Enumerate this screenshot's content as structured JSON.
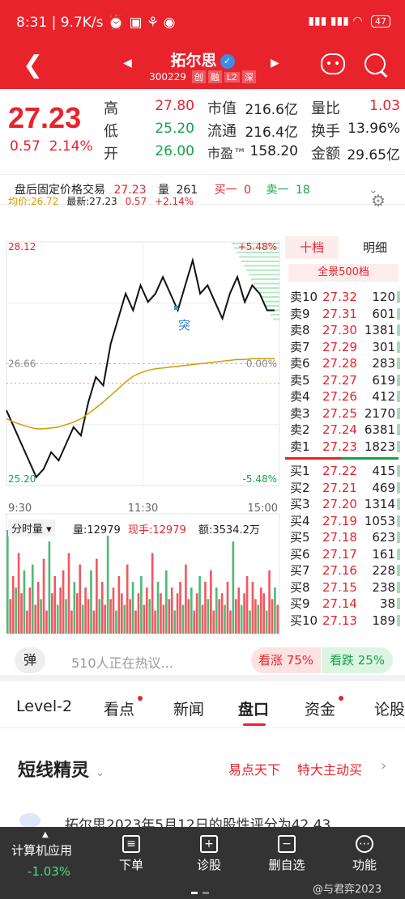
{
  "status": {
    "time": "8:31",
    "speed": "9.7K/s",
    "battery": "47",
    "icons": [
      "clock-icon",
      "app-icon",
      "app-icon",
      "weibo-icon",
      "signal-icon",
      "wifi-icon"
    ]
  },
  "header": {
    "name": "拓尔思",
    "code": "300229",
    "tags": [
      "创",
      "融",
      "L2",
      "深"
    ]
  },
  "quote": {
    "price": "27.23",
    "change": "0.57",
    "change_pct": "2.14%",
    "labels": {
      "high": "高",
      "low": "低",
      "open": "开",
      "mktcap": "市值",
      "float": "流通",
      "pe": "市盈™",
      "vol_ratio": "量比",
      "turnover": "换手",
      "amount": "金额"
    },
    "high": "27.80",
    "low": "25.20",
    "open": "26.00",
    "mktcap": "216.6亿",
    "float": "216.4亿",
    "pe": "158.20",
    "vol_ratio": "1.03",
    "turnover": "13.96%",
    "amount": "29.65亿"
  },
  "after_hours": {
    "label": "盘后固定价格交易",
    "price": "27.23",
    "vol_label": "量",
    "vol": "261",
    "sell_label": "买一",
    "sell": "0",
    "buy_label": "卖一",
    "buy": "18"
  },
  "chart_header": {
    "avg_label": "均价:26.72",
    "last_label": "最新:27.23",
    "chg": "0.57",
    "pct": "+2.14%"
  },
  "chart_data": {
    "type": "line",
    "ylim": [
      25.2,
      28.12
    ],
    "prev_close": 26.66,
    "y_ticks": [
      "28.12",
      "26.66",
      "25.20"
    ],
    "pct_ticks": [
      "+5.48%",
      "0.00%",
      "-5.48%"
    ],
    "x_ticks": [
      "9:30",
      "11:30",
      "15:00"
    ],
    "annotation": "突",
    "series": [
      {
        "values": [
          26.1,
          25.9,
          25.7,
          25.5,
          25.3,
          25.4,
          25.6,
          25.5,
          25.7,
          25.9,
          25.8,
          26.2,
          26.5,
          26.4,
          26.9,
          27.2,
          27.5,
          27.3,
          27.6,
          27.4,
          27.5,
          27.7,
          27.5,
          27.3,
          27.6,
          27.9,
          27.5,
          27.6,
          27.4,
          27.2,
          27.5,
          27.7,
          27.4,
          27.6,
          27.5,
          27.3,
          27.3
        ]
      },
      {
        "values": [
          26.0,
          25.96,
          25.93,
          25.9,
          25.88,
          25.88,
          25.89,
          25.9,
          25.93,
          25.96,
          26.0,
          26.06,
          26.13,
          26.2,
          26.28,
          26.36,
          26.44,
          26.51,
          26.55,
          26.58,
          26.6,
          26.61,
          26.62,
          26.63,
          26.64,
          26.65,
          26.66,
          26.67,
          26.68,
          26.69,
          26.7,
          26.71,
          26.71,
          26.72,
          26.72,
          26.72,
          26.72
        ]
      }
    ]
  },
  "volume": {
    "menu_label": "分时量",
    "vol_text": "量:12979",
    "now_text": "现手:12979",
    "amount_text": "额:3534.2万",
    "bars": [
      90,
      30,
      50,
      40,
      70,
      35,
      55,
      20,
      40,
      60,
      25,
      45,
      30,
      65,
      20,
      80,
      35,
      50,
      25,
      40,
      55,
      30,
      70,
      20,
      45,
      35,
      60,
      25,
      40,
      30,
      55,
      20,
      65,
      30,
      45,
      25,
      85,
      30,
      40,
      20,
      50,
      35,
      25,
      60,
      30,
      45,
      20,
      35,
      50,
      25,
      40,
      30,
      70,
      20,
      45,
      35,
      25,
      55,
      30,
      40,
      20,
      35,
      45,
      25,
      60,
      30,
      40,
      20,
      35,
      50,
      25,
      45,
      30,
      55,
      20,
      40,
      30,
      35,
      25,
      45,
      20,
      80,
      30,
      40,
      25,
      35,
      50,
      20,
      45,
      30,
      25,
      40,
      35,
      20,
      55,
      30,
      40,
      25
    ]
  },
  "orderbook": {
    "tab_active": "十档",
    "tab_other": "明细",
    "full_label": "全景500档",
    "sells": [
      {
        "label": "卖10",
        "price": "27.32",
        "vol": "120"
      },
      {
        "label": "卖9",
        "price": "27.31",
        "vol": "601"
      },
      {
        "label": "卖8",
        "price": "27.30",
        "vol": "1381"
      },
      {
        "label": "卖7",
        "price": "27.29",
        "vol": "301"
      },
      {
        "label": "卖6",
        "price": "27.28",
        "vol": "283"
      },
      {
        "label": "卖5",
        "price": "27.27",
        "vol": "619"
      },
      {
        "label": "卖4",
        "price": "27.26",
        "vol": "412"
      },
      {
        "label": "卖3",
        "price": "27.25",
        "vol": "2170"
      },
      {
        "label": "卖2",
        "price": "27.24",
        "vol": "6381"
      },
      {
        "label": "卖1",
        "price": "27.23",
        "vol": "1823"
      }
    ],
    "buys": [
      {
        "label": "买1",
        "price": "27.22",
        "vol": "415"
      },
      {
        "label": "买2",
        "price": "27.21",
        "vol": "469"
      },
      {
        "label": "买3",
        "price": "27.20",
        "vol": "1314"
      },
      {
        "label": "买4",
        "price": "27.19",
        "vol": "1053"
      },
      {
        "label": "买5",
        "price": "27.18",
        "vol": "623"
      },
      {
        "label": "买6",
        "price": "27.17",
        "vol": "161"
      },
      {
        "label": "买7",
        "price": "27.16",
        "vol": "228"
      },
      {
        "label": "买8",
        "price": "27.15",
        "vol": "238"
      },
      {
        "label": "买9",
        "price": "27.14",
        "vol": "38"
      },
      {
        "label": "买10",
        "price": "27.13",
        "vol": "189"
      }
    ]
  },
  "discuss": {
    "badge": "弹",
    "text": "510人正在热议...",
    "up": "看涨 75%",
    "down": "看跌 25%"
  },
  "tabs": [
    "Level-2",
    "看点",
    "新闻",
    "盘口",
    "资金",
    "论股"
  ],
  "section": {
    "title": "短线精灵",
    "link1": "易点天下",
    "link2": "特大主动买",
    "teaser": "拓尔思2023年5月12日的股性评分为42.43"
  },
  "bottom_bar": {
    "sector": "计算机应用",
    "sector_pct": "-1.03%",
    "items": [
      {
        "label": "下单",
        "icon": "order-icon"
      },
      {
        "label": "诊股",
        "icon": "diagnose-icon"
      },
      {
        "label": "删自选",
        "icon": "remove-watchlist-icon"
      },
      {
        "label": "功能",
        "icon": "more-icon"
      }
    ],
    "watermark": "@与君弈2023"
  }
}
